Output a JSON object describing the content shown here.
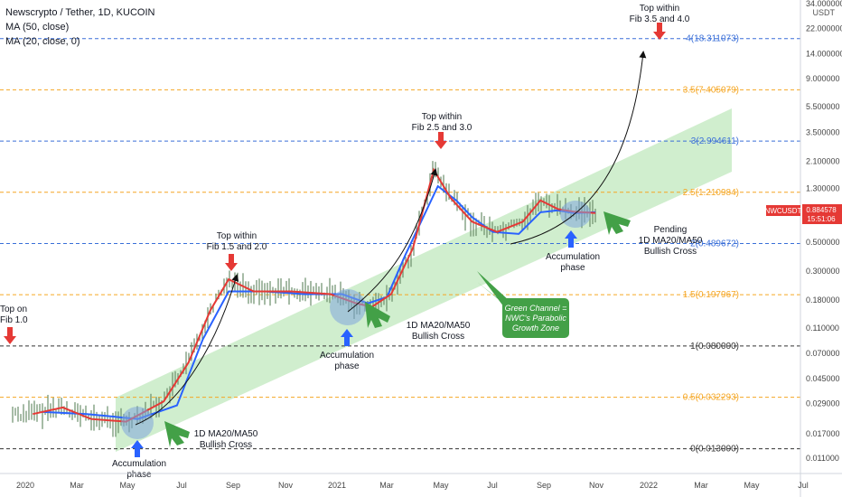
{
  "header": {
    "title": "Newscrypto / Tether, 1D, KUCOIN",
    "ma50_label": "MA (50, close)",
    "ma20_label": "MA (20, close, 0)"
  },
  "price_scale": {
    "unit": "USDT",
    "ticks": [
      "34.000000",
      "22.000000",
      "14.000000",
      "9.000000",
      "5.500000",
      "3.500000",
      "2.100000",
      "1.300000",
      "0.500000",
      "0.300000",
      "0.180000",
      "0.110000",
      "0.070000",
      "0.045000",
      "0.029000",
      "0.017000",
      "0.011000"
    ],
    "current_symbol": "NWCUSDT",
    "current_price": "0.884578",
    "countdown": "15:51:06"
  },
  "time_axis": {
    "labels": [
      "2020",
      "Mar",
      "May",
      "Jul",
      "Sep",
      "Nov",
      "2021",
      "Mar",
      "May",
      "Jul",
      "Sep",
      "Nov",
      "2022",
      "Mar",
      "May",
      "Jul"
    ]
  },
  "fib_levels": [
    {
      "label": "4(18.311073)",
      "value": 18.311073,
      "color": "#3a6fd8",
      "style": "dashed"
    },
    {
      "label": "3.5(7.405079)",
      "value": 7.405079,
      "color": "#f5a623",
      "style": "dashed"
    },
    {
      "label": "3(2.994611)",
      "value": 2.994611,
      "color": "#3a6fd8",
      "style": "dashed"
    },
    {
      "label": "2.5(1.210984)",
      "value": 1.210984,
      "color": "#f5a623",
      "style": "dashed"
    },
    {
      "label": "2(0.489672)",
      "value": 0.489672,
      "color": "#3a6fd8",
      "style": "dashed"
    },
    {
      "label": "1.5(0.197967)",
      "value": 0.197967,
      "color": "#f5a623",
      "style": "dashed"
    },
    {
      "label": "1(0.080000)",
      "value": 0.08,
      "color": "#333333",
      "style": "dashed"
    },
    {
      "label": "0.5(0.032293)",
      "value": 0.032293,
      "color": "#f5a623",
      "style": "dashed"
    },
    {
      "label": "0(0.013000)",
      "value": 0.013,
      "color": "#333333",
      "style": "dashed"
    }
  ],
  "annotations": {
    "top_fib1": [
      "Top on",
      "Fib 1.0"
    ],
    "top_fib15": [
      "Top within",
      "Fib 1.5 and 2.0"
    ],
    "top_fib25": [
      "Top within",
      "Fib 2.5 and 3.0"
    ],
    "top_fib35": [
      "Top within",
      "Fib 3.5 and 4.0"
    ],
    "accum1": [
      "Accumulation",
      "phase"
    ],
    "accum2": [
      "Accumulation",
      "phase"
    ],
    "accum3": [
      "Accumulation",
      "phase"
    ],
    "cross1": [
      "1D MA20/MA50",
      "Bullish Cross"
    ],
    "cross2": [
      "1D MA20/MA50",
      "Bullish Cross"
    ],
    "cross3": [
      "Pending",
      "1D MA20/MA50",
      "Bullish Cross"
    ],
    "green_box": [
      "Green Channel =",
      "NWC's Parabolic",
      "Growth Zone"
    ]
  },
  "colors": {
    "ma50": "#2962ff",
    "ma20": "#e53935",
    "candles": "#6b8e6b",
    "channel": "#c8ebc5",
    "accumulation": "#7fa6dc",
    "annotation_arrow_up": "#2962ff",
    "annotation_arrow_down": "#e53935",
    "green_box": "#43a047",
    "price_tag": "#e53935"
  },
  "chart_data": {
    "type": "line",
    "scale": "log",
    "x_axis": "date",
    "ylim": [
      0.0105,
      34.0
    ],
    "series": [
      {
        "name": "MA (50, close)",
        "x": [
          "2020-01-20",
          "2020-03-15",
          "2020-05-15",
          "2020-07-01",
          "2020-08-01",
          "2020-09-01",
          "2020-10-15",
          "2020-12-01",
          "2021-01-15",
          "2021-02-15",
          "2021-03-10",
          "2021-04-01",
          "2021-05-10",
          "2021-06-01",
          "2021-06-20",
          "2021-07-15",
          "2021-08-15",
          "2021-09-10",
          "2021-10-01",
          "2021-10-20",
          "2021-11-15"
        ],
        "values": [
          0.025,
          0.024,
          0.022,
          0.028,
          0.09,
          0.21,
          0.21,
          0.2,
          0.2,
          0.17,
          0.19,
          0.4,
          1.35,
          1.05,
          0.78,
          0.6,
          0.58,
          0.85,
          0.88,
          0.84,
          0.85
        ]
      },
      {
        "name": "MA (20, close, 0)",
        "x": [
          "2020-01-10",
          "2020-02-15",
          "2020-03-20",
          "2020-05-01",
          "2020-06-15",
          "2020-07-15",
          "2020-08-10",
          "2020-09-01",
          "2020-10-01",
          "2020-11-15",
          "2021-01-01",
          "2021-02-01",
          "2021-02-20",
          "2021-03-15",
          "2021-04-10",
          "2021-05-05",
          "2021-05-25",
          "2021-06-20",
          "2021-07-20",
          "2021-08-20",
          "2021-09-10",
          "2021-10-01",
          "2021-10-20",
          "2021-11-15"
        ],
        "values": [
          0.024,
          0.027,
          0.022,
          0.021,
          0.03,
          0.06,
          0.15,
          0.26,
          0.21,
          0.21,
          0.2,
          0.17,
          0.16,
          0.2,
          0.45,
          1.8,
          1.1,
          0.72,
          0.6,
          0.72,
          1.05,
          0.9,
          0.86,
          0.84
        ]
      }
    ]
  }
}
